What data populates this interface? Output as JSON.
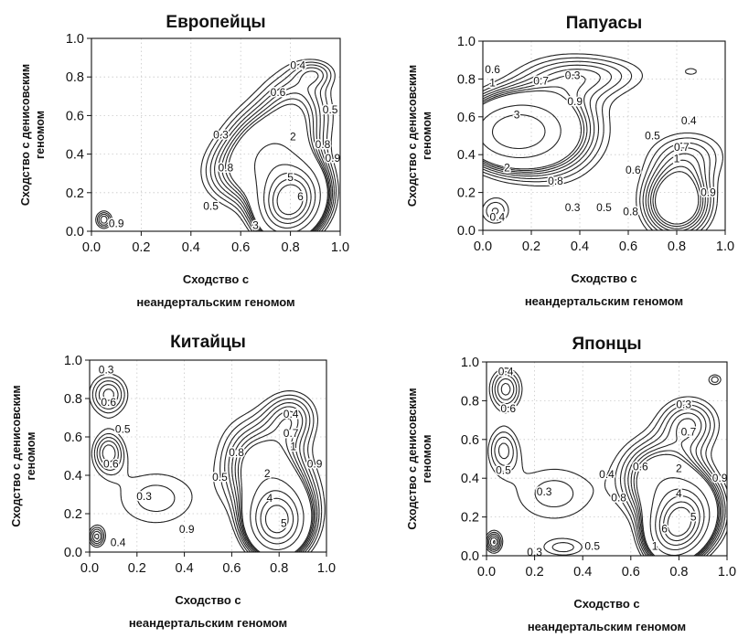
{
  "figure": {
    "y_axis_label_line1": "Сходство с денисовским",
    "y_axis_label_line2": "геномом",
    "x_axis_label_line1": "Сходство с",
    "x_axis_label_line2": "неандертальским геномом"
  },
  "chart_data": [
    {
      "type": "contour",
      "title": "Европейцы",
      "xlabel": "Сходство с неандертальским геномом",
      "ylabel": "Сходство с денисовским геномом",
      "xlim": [
        0,
        1
      ],
      "ylim": [
        0,
        1
      ],
      "xticks": [
        "0.0",
        "0.2",
        "0.4",
        "0.6",
        "0.8",
        "1.0"
      ],
      "yticks": [
        "0.0",
        "0.2",
        "0.4",
        "0.6",
        "0.8",
        "1.0"
      ],
      "peak": [
        0.8,
        0.15
      ],
      "solid_levels": [
        "1",
        "2",
        "3",
        "4",
        "5",
        "6"
      ],
      "dashed_levels": [
        "0.3",
        "0.4",
        "0.5",
        "0.6",
        "0.7",
        "0.8",
        "0.9"
      ],
      "contour_labels": [
        {
          "text": "0.4",
          "x": 0.83,
          "y": 0.86
        },
        {
          "text": "0.6",
          "x": 0.75,
          "y": 0.72
        },
        {
          "text": "0.5",
          "x": 0.96,
          "y": 0.63
        },
        {
          "text": "0.3",
          "x": 0.52,
          "y": 0.5
        },
        {
          "text": "2",
          "x": 0.81,
          "y": 0.49
        },
        {
          "text": "0.8",
          "x": 0.93,
          "y": 0.45
        },
        {
          "text": "0.9",
          "x": 0.97,
          "y": 0.38
        },
        {
          "text": "0.8",
          "x": 0.54,
          "y": 0.33
        },
        {
          "text": "5",
          "x": 0.8,
          "y": 0.28
        },
        {
          "text": "6",
          "x": 0.84,
          "y": 0.18
        },
        {
          "text": "3",
          "x": 0.66,
          "y": 0.03
        },
        {
          "text": "0.9",
          "x": 0.1,
          "y": 0.04
        },
        {
          "text": "0.5",
          "x": 0.48,
          "y": 0.13
        }
      ]
    },
    {
      "type": "contour",
      "title": "Папуасы",
      "xlabel": "Сходство с неандертальским геномом",
      "ylabel": "Сходство с денисовским геномом",
      "xlim": [
        0,
        1
      ],
      "ylim": [
        0,
        1
      ],
      "xticks": [
        "0.0",
        "0.2",
        "0.4",
        "0.6",
        "0.8",
        "1.0"
      ],
      "yticks": [
        "0.0",
        "0.2",
        "0.4",
        "0.6",
        "0.8",
        "1.0"
      ],
      "peak": [
        0.12,
        0.52
      ],
      "solid_levels": [
        "1",
        "2",
        "3"
      ],
      "dashed_levels": [
        "0.3",
        "0.4",
        "0.5",
        "0.6",
        "0.7",
        "0.8",
        "0.9"
      ],
      "contour_labels": [
        {
          "text": "0.6",
          "x": 0.04,
          "y": 0.85
        },
        {
          "text": "0.3",
          "x": 0.37,
          "y": 0.82
        },
        {
          "text": "0.7",
          "x": 0.24,
          "y": 0.79
        },
        {
          "text": "1",
          "x": 0.04,
          "y": 0.78
        },
        {
          "text": "0.9",
          "x": 0.38,
          "y": 0.68
        },
        {
          "text": "3",
          "x": 0.14,
          "y": 0.61
        },
        {
          "text": "0.4",
          "x": 0.85,
          "y": 0.58
        },
        {
          "text": "0.5",
          "x": 0.7,
          "y": 0.5
        },
        {
          "text": "0.7",
          "x": 0.82,
          "y": 0.44
        },
        {
          "text": "1",
          "x": 0.8,
          "y": 0.38
        },
        {
          "text": "2",
          "x": 0.1,
          "y": 0.33
        },
        {
          "text": "0.6",
          "x": 0.62,
          "y": 0.32
        },
        {
          "text": "0.8",
          "x": 0.3,
          "y": 0.26
        },
        {
          "text": "0.9",
          "x": 0.93,
          "y": 0.2
        },
        {
          "text": "0.3",
          "x": 0.37,
          "y": 0.12
        },
        {
          "text": "0.5",
          "x": 0.5,
          "y": 0.12
        },
        {
          "text": "0.8",
          "x": 0.61,
          "y": 0.1
        },
        {
          "text": "0.4",
          "x": 0.06,
          "y": 0.07
        }
      ]
    },
    {
      "type": "contour",
      "title": "Китайцы",
      "xlabel": "Сходство с неандертальским геномом",
      "ylabel": "Сходство с денисовским геномом",
      "xlim": [
        0,
        1
      ],
      "ylim": [
        0,
        1
      ],
      "xticks": [
        "0.0",
        "0.2",
        "0.4",
        "0.6",
        "0.8",
        "1.0"
      ],
      "yticks": [
        "0.0",
        "0.2",
        "0.4",
        "0.6",
        "0.8",
        "1.0"
      ],
      "peak": [
        0.79,
        0.16
      ],
      "solid_levels": [
        "1",
        "2",
        "3",
        "4",
        "5"
      ],
      "dashed_levels": [
        "0.3",
        "0.4",
        "0.5",
        "0.6",
        "0.7",
        "0.8",
        "0.9"
      ],
      "contour_labels": [
        {
          "text": "0.3",
          "x": 0.07,
          "y": 0.95
        },
        {
          "text": "0.6",
          "x": 0.08,
          "y": 0.78
        },
        {
          "text": "0.5",
          "x": 0.14,
          "y": 0.64
        },
        {
          "text": "0.4",
          "x": 0.85,
          "y": 0.72
        },
        {
          "text": "0.7",
          "x": 0.85,
          "y": 0.62
        },
        {
          "text": "1",
          "x": 0.86,
          "y": 0.55
        },
        {
          "text": "0.6",
          "x": 0.09,
          "y": 0.46
        },
        {
          "text": "0.8",
          "x": 0.62,
          "y": 0.52
        },
        {
          "text": "0.9",
          "x": 0.95,
          "y": 0.46
        },
        {
          "text": "0.5",
          "x": 0.55,
          "y": 0.39
        },
        {
          "text": "2",
          "x": 0.75,
          "y": 0.41
        },
        {
          "text": "0.3",
          "x": 0.23,
          "y": 0.29
        },
        {
          "text": "4",
          "x": 0.76,
          "y": 0.28
        },
        {
          "text": "5",
          "x": 0.82,
          "y": 0.15
        },
        {
          "text": "0.9",
          "x": 0.41,
          "y": 0.12
        },
        {
          "text": "0.4",
          "x": 0.12,
          "y": 0.05
        }
      ]
    },
    {
      "type": "contour",
      "title": "Японцы",
      "xlabel": "Сходство с неандертальским геномом",
      "ylabel": "Сходство с денисовским геномом",
      "xlim": [
        0,
        1
      ],
      "ylim": [
        0,
        1
      ],
      "xticks": [
        "0.0",
        "0.2",
        "0.4",
        "0.6",
        "0.8",
        "1.0"
      ],
      "yticks": [
        "0.0",
        "0.2",
        "0.4",
        "0.6",
        "0.8",
        "1.0"
      ],
      "peak": [
        0.8,
        0.16
      ],
      "solid_levels": [
        "1",
        "2",
        "3",
        "4",
        "5",
        "6"
      ],
      "dashed_levels": [
        "0.3",
        "0.4",
        "0.5",
        "0.6",
        "0.7",
        "0.8",
        "0.9"
      ],
      "contour_labels": [
        {
          "text": "0.4",
          "x": 0.08,
          "y": 0.95
        },
        {
          "text": "0.6",
          "x": 0.09,
          "y": 0.76
        },
        {
          "text": "0.3",
          "x": 0.82,
          "y": 0.78
        },
        {
          "text": "0.7",
          "x": 0.84,
          "y": 0.64
        },
        {
          "text": "0.5",
          "x": 0.07,
          "y": 0.44
        },
        {
          "text": "0.3",
          "x": 0.24,
          "y": 0.33
        },
        {
          "text": "0.4",
          "x": 0.5,
          "y": 0.42
        },
        {
          "text": "0.6",
          "x": 0.64,
          "y": 0.46
        },
        {
          "text": "2",
          "x": 0.8,
          "y": 0.45
        },
        {
          "text": "0.9",
          "x": 0.97,
          "y": 0.4
        },
        {
          "text": "0.8",
          "x": 0.55,
          "y": 0.3
        },
        {
          "text": "4",
          "x": 0.8,
          "y": 0.32
        },
        {
          "text": "5",
          "x": 0.86,
          "y": 0.2
        },
        {
          "text": "6",
          "x": 0.74,
          "y": 0.14
        },
        {
          "text": "0.5",
          "x": 0.44,
          "y": 0.05
        },
        {
          "text": "0.3",
          "x": 0.2,
          "y": 0.02
        },
        {
          "text": "1",
          "x": 0.7,
          "y": 0.05
        }
      ]
    }
  ]
}
